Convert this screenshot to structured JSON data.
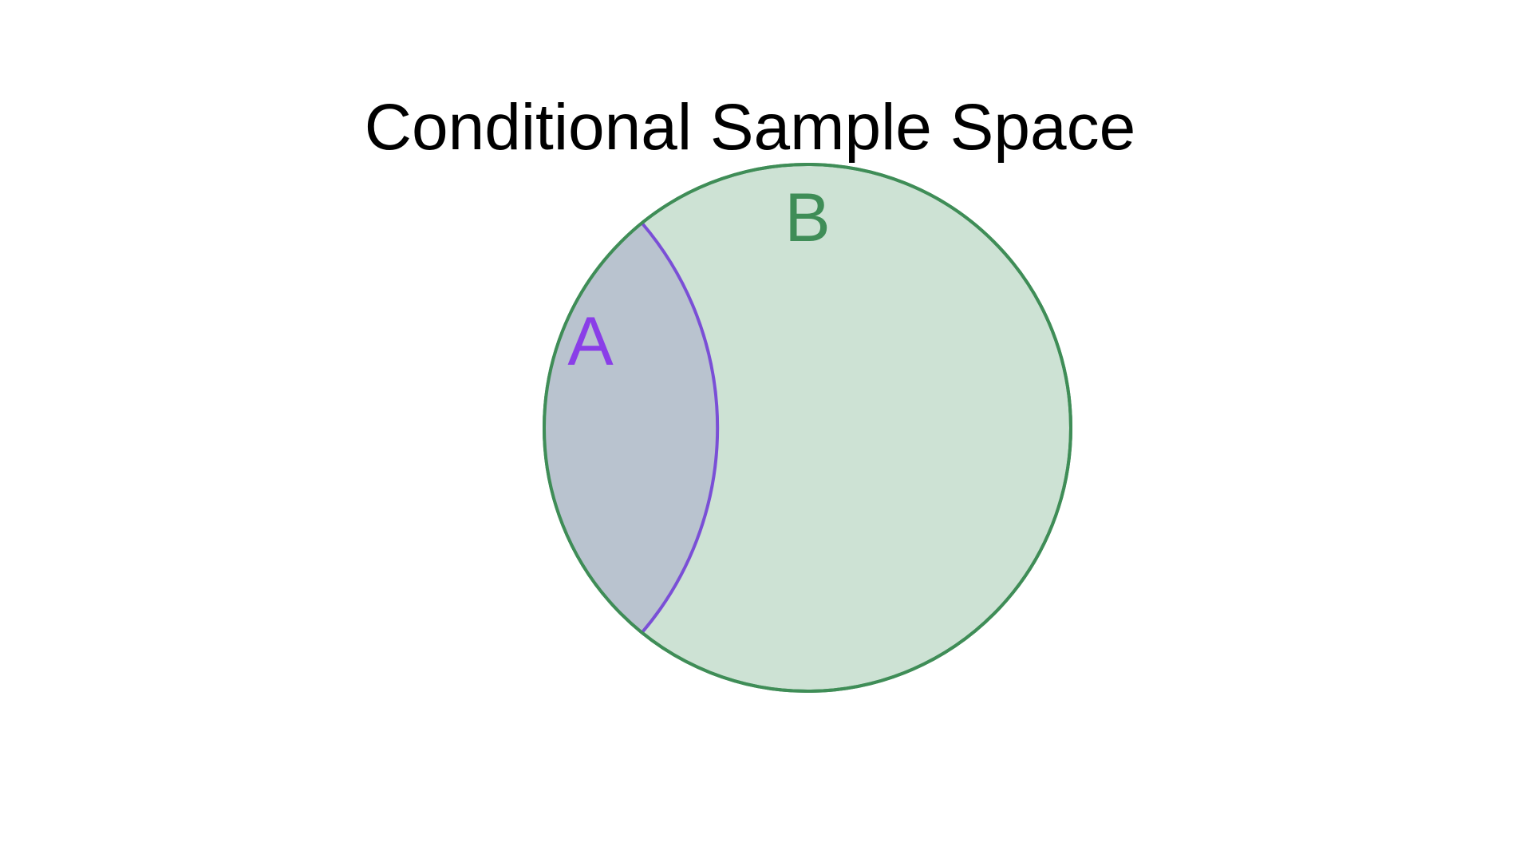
{
  "title": "Conditional Sample Space",
  "sets": [
    {
      "id": "B",
      "label": "B",
      "fill_color": "#cde2d4",
      "stroke_color": "#3f8d57",
      "label_color": "#3f8d57"
    },
    {
      "id": "A",
      "label": "A",
      "fill_color": "#b9c3cf",
      "stroke_color": "#7a4fd6",
      "label_color": "#8a3ee8"
    }
  ]
}
